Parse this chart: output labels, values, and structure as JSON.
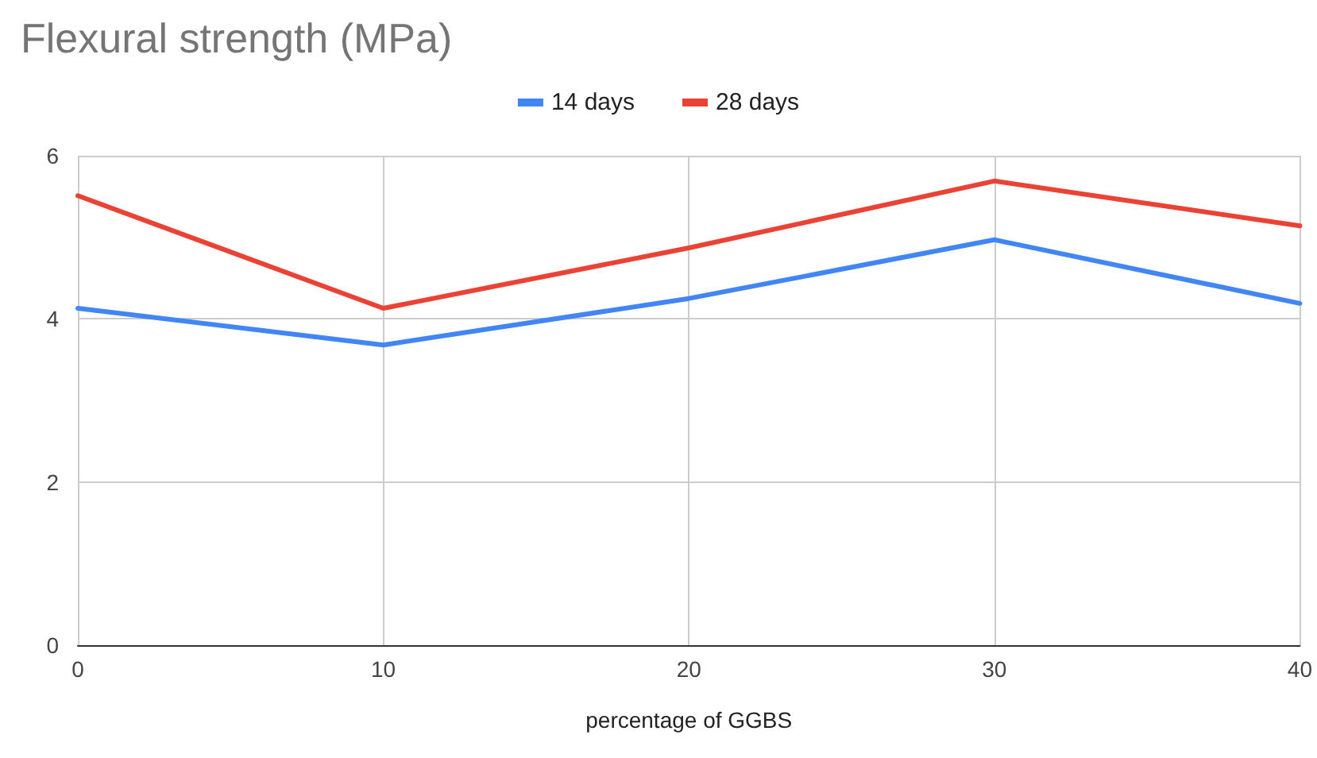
{
  "chart_data": {
    "type": "line",
    "title": "Flexural strength (MPa)",
    "xlabel": "percentage of GGBS",
    "x": [
      0,
      10,
      20,
      30,
      40
    ],
    "series": [
      {
        "name": "14 days",
        "color": "#4285f4",
        "values": [
          4.13,
          3.68,
          4.25,
          4.97,
          4.19
        ]
      },
      {
        "name": "28 days",
        "color": "#ea4335",
        "values": [
          5.51,
          4.13,
          4.87,
          5.69,
          5.14
        ]
      }
    ],
    "xlim": [
      0,
      40
    ],
    "xticks": [
      0,
      10,
      20,
      30,
      40
    ],
    "ylim": [
      0,
      6
    ],
    "yticks": [
      0,
      2,
      4,
      6
    ],
    "grid": true,
    "legend": "top",
    "marker": "none",
    "line_style": "solid"
  }
}
